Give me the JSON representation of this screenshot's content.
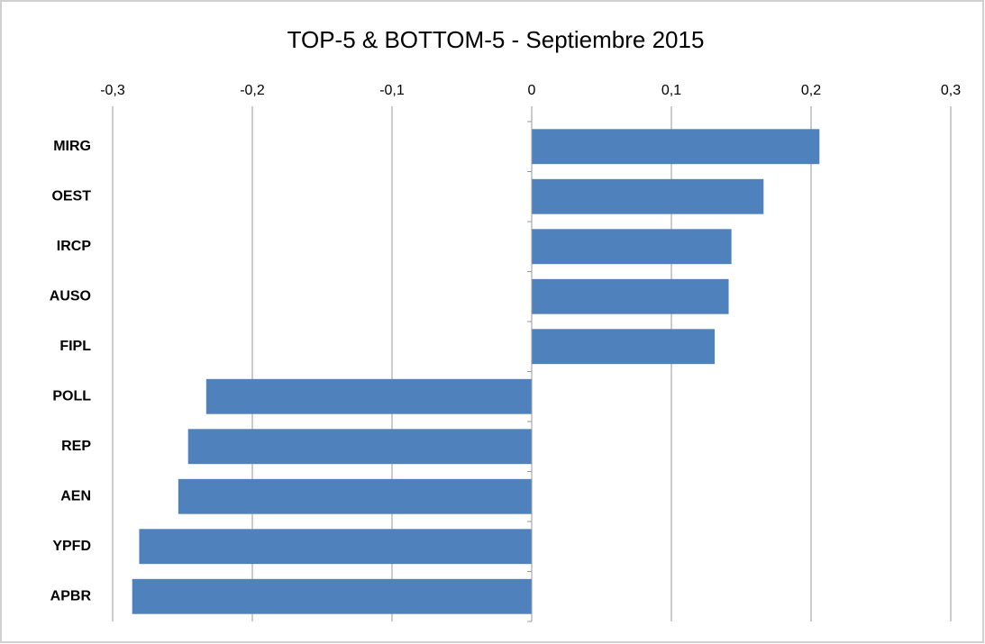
{
  "chart_data": {
    "type": "bar",
    "orientation": "horizontal",
    "title": "TOP-5 & BOTTOM-5 - Septiembre 2015",
    "categories": [
      "MIRG",
      "OEST",
      "IRCP",
      "AUSO",
      "FIPL",
      "POLL",
      "REP",
      "AEN",
      "YPFD",
      "APBR"
    ],
    "values": [
      0.206,
      0.166,
      0.143,
      0.141,
      0.131,
      -0.233,
      -0.246,
      -0.253,
      -0.281,
      -0.286
    ],
    "color": "#4f81bd",
    "xlim": [
      -0.3,
      0.3
    ],
    "xticks": [
      {
        "value": -0.3,
        "label": "-0,3"
      },
      {
        "value": -0.2,
        "label": "-0,2"
      },
      {
        "value": -0.1,
        "label": "-0,1"
      },
      0,
      {
        "value": 0.1,
        "label": "0,1"
      },
      {
        "value": 0.2,
        "label": "0,2"
      },
      {
        "value": 0.3,
        "label": "0,3"
      }
    ],
    "grid": true
  }
}
